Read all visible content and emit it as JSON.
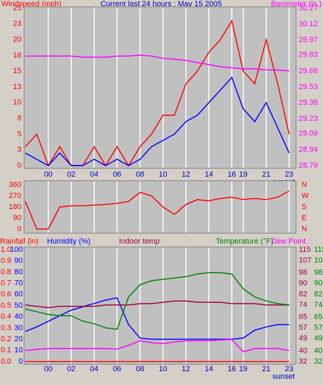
{
  "chart_data": [
    {
      "type": "line",
      "title": "Current last 24 hours : May 15 2005",
      "ylabel": "Windspeed (mph)",
      "y2label": "Barometer (in.)",
      "x": [
        -2,
        -1,
        0,
        1,
        2,
        3,
        4,
        5,
        6,
        7,
        8,
        9,
        10,
        11,
        12,
        13,
        14,
        15,
        16,
        17,
        18,
        19,
        20,
        21
      ],
      "xlim": [
        -2.1,
        21.6
      ],
      "xticks": [
        {
          "value": 0,
          "label": "00"
        },
        {
          "value": 2,
          "label": "02"
        },
        {
          "value": 4,
          "label": "04"
        },
        {
          "value": 6,
          "label": "06"
        },
        {
          "value": 8,
          "label": "08"
        },
        10,
        12,
        14,
        16,
        {
          "value": 17,
          "label": "19"
        },
        {
          "value": 19,
          "label": "21"
        },
        {
          "value": 21,
          "label": "23"
        }
      ],
      "annotation": "sunset",
      "ylim": [
        0,
        25
      ],
      "yticks": [
        0,
        {
          "value": 2.5,
          "label": "3"
        },
        5,
        {
          "value": 7.5,
          "label": "8"
        },
        10,
        {
          "value": 12.5,
          "label": "13"
        },
        15,
        {
          "value": 17.5,
          "label": "18"
        },
        20,
        {
          "value": 22.5,
          "label": "23"
        },
        25
      ],
      "y2lim": [
        28.79,
        30.27
      ],
      "y2ticks": [
        28.79,
        28.94,
        29.09,
        29.23,
        29.38,
        29.53,
        29.68,
        29.83,
        29.97,
        30.12,
        30.27
      ],
      "series": [
        {
          "name": "Windspeed (mph)",
          "color": "#ff0000",
          "values": [
            3,
            5,
            0,
            3,
            0,
            0,
            3,
            0,
            3,
            0,
            3,
            5,
            8,
            8,
            13,
            15,
            18,
            20,
            23,
            15,
            13,
            20,
            13,
            5
          ]
        },
        {
          "color": "#0000ff",
          "values": [
            2,
            1,
            0,
            2,
            0,
            0,
            1,
            0,
            1,
            0,
            1,
            3,
            4,
            5,
            7,
            8,
            10,
            12,
            14,
            9,
            7,
            10,
            6,
            2
          ]
        },
        {
          "name": "Barometer (in.)",
          "color": "#ff00ff",
          "axis": "y2",
          "values": [
            29.82,
            29.82,
            29.82,
            29.82,
            29.82,
            29.81,
            29.81,
            29.81,
            29.82,
            29.82,
            29.83,
            29.82,
            29.8,
            29.79,
            29.78,
            29.76,
            29.74,
            29.72,
            29.71,
            29.7,
            29.7,
            29.69,
            29.69,
            29.68
          ]
        }
      ]
    },
    {
      "type": "line",
      "x": [
        -2,
        -1,
        0,
        1,
        2,
        3,
        4,
        5,
        6,
        7,
        8,
        9,
        10,
        11,
        12,
        13,
        14,
        15,
        16,
        17,
        18,
        19,
        20,
        21
      ],
      "xlim": [
        -2.1,
        21.6
      ],
      "ylim": [
        0,
        360
      ],
      "yticks": [
        0,
        90,
        180,
        270,
        360
      ],
      "y2lim": [
        0,
        360
      ],
      "y2ticks": [
        {
          "value": 360,
          "label": "N"
        },
        {
          "value": 270,
          "label": "W"
        },
        {
          "value": 180,
          "label": "S"
        },
        {
          "value": 90,
          "label": "E"
        },
        {
          "value": 0,
          "label": "N"
        }
      ],
      "series": [
        {
          "color": "#ff0000",
          "values": [
            225,
            0,
            0,
            180,
            190,
            190,
            195,
            200,
            210,
            225,
            300,
            270,
            180,
            120,
            200,
            240,
            230,
            250,
            260,
            240,
            250,
            240,
            260,
            310
          ]
        }
      ]
    },
    {
      "type": "line",
      "x": [
        -2,
        -1,
        0,
        1,
        2,
        3,
        4,
        5,
        6,
        7,
        8,
        9,
        10,
        11,
        12,
        13,
        14,
        15,
        16,
        17,
        18,
        19,
        20,
        21
      ],
      "xlim": [
        -2.1,
        21.6
      ],
      "xticks": [
        {
          "value": 0,
          "label": "00"
        },
        {
          "value": 2,
          "label": "02"
        },
        {
          "value": 4,
          "label": "04"
        },
        {
          "value": 6,
          "label": "06"
        },
        {
          "value": 8,
          "label": "08"
        },
        10,
        12,
        14,
        16,
        {
          "value": 17,
          "label": "19"
        },
        {
          "value": 19,
          "label": "21"
        },
        {
          "value": 21,
          "label": "23"
        }
      ],
      "annotation": "sunset",
      "ylim": [
        0,
        1
      ],
      "yticks": [
        {
          "value": 0,
          "label": "0.0"
        },
        0.1,
        0.2,
        0.3,
        0.4,
        0.5,
        0.6,
        0.7,
        0.8,
        0.9,
        {
          "value": 1,
          "label": "1.0"
        }
      ],
      "y3lim": [
        0,
        100
      ],
      "y3ticks": [
        0,
        10,
        20,
        30,
        40,
        50,
        60,
        70,
        80,
        90,
        100
      ],
      "y2lim": [
        32,
        115
      ],
      "y2ticks": [
        32,
        40,
        49,
        57,
        65,
        74,
        82,
        90,
        98,
        107,
        115
      ],
      "series": [
        {
          "name": "Rainfall (in)",
          "color": "#ff0000",
          "values": [
            0,
            0,
            0,
            0,
            0,
            0,
            0,
            0,
            0,
            0,
            0,
            0,
            0,
            0,
            0,
            0,
            0,
            0,
            0,
            0,
            0,
            0,
            0,
            0
          ]
        },
        {
          "name": "Humidity (%)",
          "color": "#0000ff",
          "axis": "y3",
          "values": [
            27,
            31,
            36,
            41,
            46,
            49,
            52,
            55,
            57,
            33,
            21,
            20,
            20,
            20,
            20,
            20,
            20,
            20,
            20,
            21,
            28,
            31,
            33,
            33
          ]
        },
        {
          "name": "Indoor temp",
          "color": "#a00040",
          "axis": "y2",
          "values": [
            74,
            73,
            72,
            73,
            73,
            73,
            73,
            74,
            74,
            74,
            75,
            75,
            76,
            77,
            77,
            76,
            76,
            76,
            75,
            75,
            75,
            74,
            74,
            74
          ]
        },
        {
          "name": "Temperature (°F)",
          "color": "#008000",
          "axis": "y2",
          "values": [
            71,
            69,
            67,
            66,
            66,
            62,
            60,
            57,
            56,
            80,
            89,
            92,
            93,
            94,
            95,
            97,
            98,
            98,
            97,
            86,
            80,
            77,
            75,
            74
          ]
        },
        {
          "name": "Dew Point",
          "color": "#ff00ff",
          "axis": "y2",
          "values": [
            40.2,
            41,
            41.7,
            41.7,
            41.7,
            41.7,
            41.7,
            41.7,
            41.2,
            44,
            47.4,
            46,
            45.3,
            46.5,
            47.4,
            47.4,
            47.4,
            48,
            48.4,
            39.2,
            41.7,
            41.7,
            41.7,
            40.2
          ]
        }
      ]
    }
  ]
}
